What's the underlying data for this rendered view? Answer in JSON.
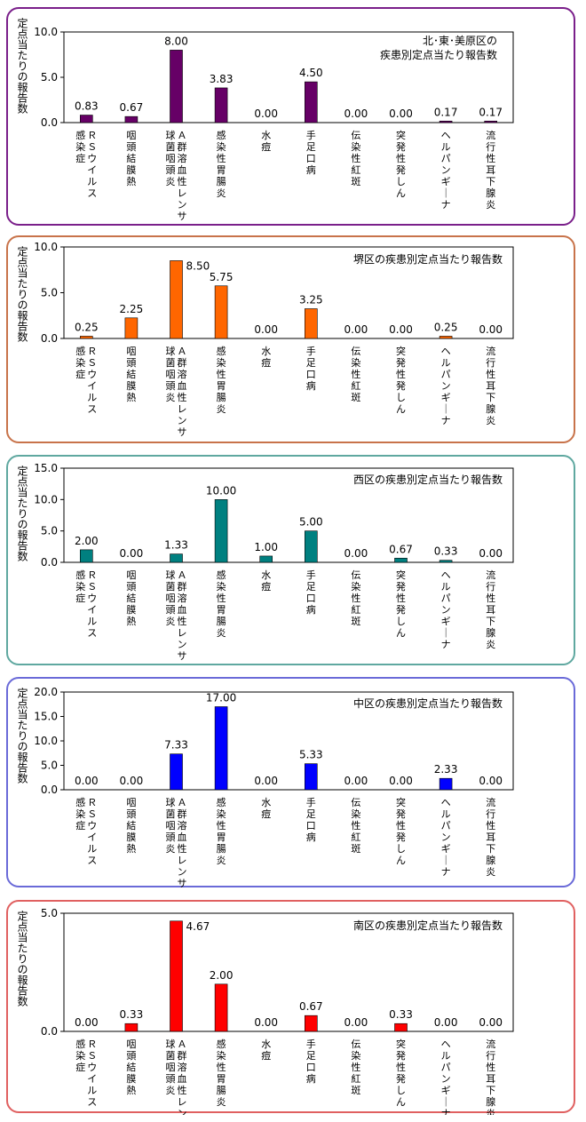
{
  "categories_shared": true,
  "chart_data": [
    {
      "type": "bar",
      "title": "北･東･美原区の\n疾患別定点当たり報告数",
      "ylabel": "定点当たりの報告数",
      "categories": [
        "ＲＳウイルス感染症",
        "咽頭結膜熱",
        "Ａ群溶血性レンサ球菌咽頭炎",
        "感染性胃腸炎",
        "水痘",
        "手足口病",
        "伝染性紅斑",
        "突発性発しん",
        "ヘルパンギーナ",
        "流行性耳下腺炎"
      ],
      "values": [
        0.83,
        0.67,
        8.0,
        3.83,
        0.0,
        4.5,
        0.0,
        0.0,
        0.17,
        0.17
      ],
      "value_labels": [
        "0.83",
        "0.67",
        "8.00",
        "3.83",
        "0.00",
        "4.50",
        "0.00",
        "0.00",
        "0.17",
        "0.17"
      ],
      "yticks": [
        "0.0",
        "5.0",
        "10.0"
      ],
      "ylim": [
        0,
        10
      ],
      "bar_color": "#660066",
      "border_color": "#7a1f8a",
      "grid": false,
      "legend": "none"
    },
    {
      "type": "bar",
      "title": "堺区の疾患別定点当たり報告数",
      "ylabel": "定点当たりの報告数",
      "categories": [
        "ＲＳウイルス感染症",
        "咽頭結膜熱",
        "Ａ群溶血性レンサ球菌咽頭炎",
        "感染性胃腸炎",
        "水痘",
        "手足口病",
        "伝染性紅斑",
        "突発性発しん",
        "ヘルパンギーナ",
        "流行性耳下腺炎"
      ],
      "values": [
        0.25,
        2.25,
        8.5,
        5.75,
        0.0,
        3.25,
        0.0,
        0.0,
        0.25,
        0.0
      ],
      "value_labels": [
        "0.25",
        "2.25",
        "8.50",
        "5.75",
        "0.00",
        "3.25",
        "0.00",
        "0.00",
        "0.25",
        "0.00"
      ],
      "yticks": [
        "0.0",
        "5.0",
        "10.0"
      ],
      "ylim": [
        0,
        10
      ],
      "bar_color": "#ff6600",
      "border_color": "#c8734a",
      "grid": false,
      "legend": "none"
    },
    {
      "type": "bar",
      "title": "西区の疾患別定点当たり報告数",
      "ylabel": "定点当たりの報告数",
      "categories": [
        "ＲＳウイルス感染症",
        "咽頭結膜熱",
        "Ａ群溶血性レンサ球菌咽頭炎",
        "感染性胃腸炎",
        "水痘",
        "手足口病",
        "伝染性紅斑",
        "突発性発しん",
        "ヘルパンギーナ",
        "流行性耳下腺炎"
      ],
      "values": [
        2.0,
        0.0,
        1.33,
        10.0,
        1.0,
        5.0,
        0.0,
        0.67,
        0.33,
        0.0
      ],
      "value_labels": [
        "2.00",
        "0.00",
        "1.33",
        "10.00",
        "1.00",
        "5.00",
        "0.00",
        "0.67",
        "0.33",
        "0.00"
      ],
      "yticks": [
        "0.0",
        "5.0",
        "10.0",
        "15.0"
      ],
      "ylim": [
        0,
        15
      ],
      "bar_color": "#008080",
      "border_color": "#5fa8a0",
      "grid": false,
      "legend": "none"
    },
    {
      "type": "bar",
      "title": "中区の疾患別定点当たり報告数",
      "ylabel": "定点当たりの報告数",
      "categories": [
        "ＲＳウイルス感染症",
        "咽頭結膜熱",
        "Ａ群溶血性レンサ球菌咽頭炎",
        "感染性胃腸炎",
        "水痘",
        "手足口病",
        "伝染性紅斑",
        "突発性発しん",
        "ヘルパンギーナ",
        "流行性耳下腺炎"
      ],
      "values": [
        0.0,
        0.0,
        7.33,
        17.0,
        0.0,
        5.33,
        0.0,
        0.0,
        2.33,
        0.0
      ],
      "value_labels": [
        "0.00",
        "0.00",
        "7.33",
        "17.00",
        "0.00",
        "5.33",
        "0.00",
        "0.00",
        "2.33",
        "0.00"
      ],
      "yticks": [
        "0.0",
        "5.0",
        "10.0",
        "15.0",
        "20.0"
      ],
      "ylim": [
        0,
        20
      ],
      "bar_color": "#0000ff",
      "border_color": "#6a6ad8",
      "grid": false,
      "legend": "none"
    },
    {
      "type": "bar",
      "title": "南区の疾患別定点当たり報告数",
      "ylabel": "定点当たりの報告数",
      "categories": [
        "ＲＳウイルス感染症",
        "咽頭結膜熱",
        "Ａ群溶血性レンサ球菌咽頭炎",
        "感染性胃腸炎",
        "水痘",
        "手足口病",
        "伝染性紅斑",
        "突発性発しん",
        "ヘルパンギーナ",
        "流行性耳下腺炎"
      ],
      "values": [
        0.0,
        0.33,
        4.67,
        2.0,
        0.0,
        0.67,
        0.0,
        0.33,
        0.0,
        0.0
      ],
      "value_labels": [
        "0.00",
        "0.33",
        "4.67",
        "2.00",
        "0.00",
        "0.67",
        "0.00",
        "0.33",
        "0.00",
        "0.00"
      ],
      "yticks": [
        "0.0",
        "5.0"
      ],
      "ylim": [
        0,
        5
      ],
      "bar_color": "#ff0000",
      "border_color": "#e06060",
      "grid": false,
      "legend": "none"
    }
  ],
  "category_label_lines": [
    [
      "ＲＳウイルス",
      "感染症"
    ],
    [
      "咽頭結膜熱"
    ],
    [
      "Ａ群溶血性レンサ",
      "球菌咽頭炎"
    ],
    [
      "感染性胃腸炎"
    ],
    [
      "水痘"
    ],
    [
      "手足口病"
    ],
    [
      "伝染性紅斑"
    ],
    [
      "突発性発しん"
    ],
    [
      "ヘルパンギーナ"
    ],
    [
      "流行性耳下腺炎"
    ]
  ]
}
